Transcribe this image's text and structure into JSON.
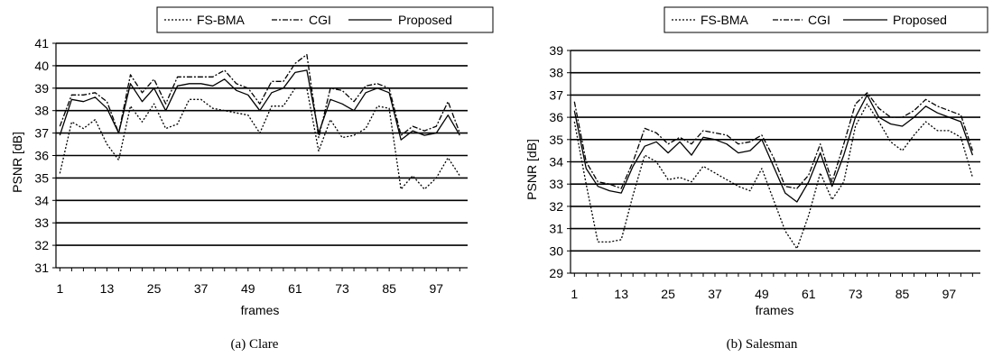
{
  "chart_data": [
    {
      "type": "line",
      "caption": "(a) Clare",
      "xlabel": "frames",
      "ylabel": "PSNR [dB]",
      "ylim": [
        31,
        41
      ],
      "yticks": [
        "31",
        "32",
        "33",
        "34",
        "35",
        "36",
        "37",
        "38",
        "39",
        "40",
        "41"
      ],
      "xticks": [
        "1",
        "13",
        "25",
        "37",
        "49",
        "61",
        "73",
        "85",
        "97"
      ],
      "grid": "horizontal",
      "legend_position": "top",
      "x": [
        1,
        4,
        7,
        10,
        13,
        16,
        19,
        22,
        25,
        28,
        31,
        34,
        37,
        40,
        43,
        46,
        49,
        52,
        55,
        58,
        61,
        64,
        67,
        70,
        73,
        76,
        79,
        82,
        85,
        88,
        91,
        94,
        97,
        100,
        103
      ],
      "series": [
        {
          "name": "FS-BMA",
          "style": "dotted",
          "values": [
            35.2,
            37.5,
            37.2,
            37.6,
            36.5,
            35.8,
            38.2,
            37.5,
            38.3,
            37.2,
            37.4,
            38.5,
            38.5,
            38.1,
            38.0,
            37.9,
            37.8,
            37.0,
            38.2,
            38.2,
            39.0,
            39.0,
            36.2,
            37.6,
            36.8,
            36.9,
            37.2,
            38.2,
            38.1,
            34.5,
            35.1,
            34.5,
            35.0,
            35.9,
            35.1
          ]
        },
        {
          "name": "CGI",
          "style": "dashdot",
          "values": [
            37.3,
            38.7,
            38.7,
            38.8,
            38.4,
            37.0,
            39.6,
            38.8,
            39.4,
            38.3,
            39.5,
            39.5,
            39.5,
            39.5,
            39.8,
            39.2,
            39.0,
            38.3,
            39.3,
            39.3,
            40.1,
            40.5,
            36.8,
            39.0,
            38.9,
            38.4,
            39.1,
            39.2,
            39.0,
            36.9,
            37.3,
            37.1,
            37.3,
            38.4,
            37.0
          ]
        },
        {
          "name": "Proposed",
          "style": "solid",
          "values": [
            36.9,
            38.5,
            38.4,
            38.6,
            38.1,
            37.0,
            39.2,
            38.4,
            39.0,
            38.0,
            39.1,
            39.2,
            39.2,
            39.1,
            39.4,
            38.9,
            38.7,
            38.0,
            38.8,
            39.0,
            39.7,
            39.8,
            37.0,
            38.5,
            38.3,
            38.0,
            38.8,
            39.0,
            38.8,
            36.7,
            37.1,
            36.9,
            37.0,
            37.8,
            36.9
          ]
        }
      ]
    },
    {
      "type": "line",
      "caption": "(b) Salesman",
      "xlabel": "frames",
      "ylabel": "PSNR [dB]",
      "ylim": [
        29,
        39
      ],
      "yticks": [
        "29",
        "30",
        "31",
        "32",
        "33",
        "34",
        "35",
        "36",
        "37",
        "38",
        "39"
      ],
      "xticks": [
        "1",
        "13",
        "25",
        "37",
        "49",
        "61",
        "73",
        "85",
        "97"
      ],
      "grid": "horizontal",
      "legend_position": "top",
      "x": [
        1,
        4,
        7,
        10,
        13,
        16,
        19,
        22,
        25,
        28,
        31,
        34,
        37,
        40,
        43,
        46,
        49,
        52,
        55,
        58,
        61,
        64,
        67,
        70,
        73,
        76,
        79,
        82,
        85,
        88,
        91,
        94,
        97,
        100,
        103
      ],
      "series": [
        {
          "name": "FS-BMA",
          "style": "dotted",
          "values": [
            35.8,
            33.0,
            30.4,
            30.4,
            30.5,
            32.5,
            34.3,
            34.0,
            33.2,
            33.3,
            33.1,
            33.8,
            33.5,
            33.2,
            32.9,
            32.7,
            33.7,
            32.3,
            30.9,
            30.1,
            31.6,
            33.5,
            32.3,
            33.1,
            35.6,
            36.6,
            35.8,
            34.9,
            34.5,
            35.2,
            35.8,
            35.4,
            35.4,
            35.1,
            33.3
          ]
        },
        {
          "name": "CGI",
          "style": "dashdot",
          "values": [
            36.7,
            34.0,
            33.1,
            33.0,
            32.8,
            34.0,
            35.5,
            35.3,
            34.8,
            35.1,
            34.8,
            35.4,
            35.3,
            35.2,
            34.8,
            34.9,
            35.2,
            34.2,
            32.9,
            32.8,
            33.4,
            34.8,
            33.1,
            34.8,
            36.6,
            37.1,
            36.4,
            36.0,
            36.0,
            36.3,
            36.8,
            36.5,
            36.3,
            36.1,
            34.5
          ]
        },
        {
          "name": "Proposed",
          "style": "solid",
          "values": [
            36.3,
            33.7,
            32.9,
            32.7,
            32.6,
            33.8,
            34.7,
            34.9,
            34.4,
            34.9,
            34.3,
            35.1,
            35.0,
            34.8,
            34.4,
            34.5,
            35.0,
            33.8,
            32.6,
            32.2,
            33.1,
            34.4,
            32.9,
            34.3,
            36.0,
            37.0,
            36.0,
            35.7,
            35.6,
            36.0,
            36.5,
            36.2,
            36.0,
            35.8,
            34.3
          ]
        }
      ]
    }
  ]
}
